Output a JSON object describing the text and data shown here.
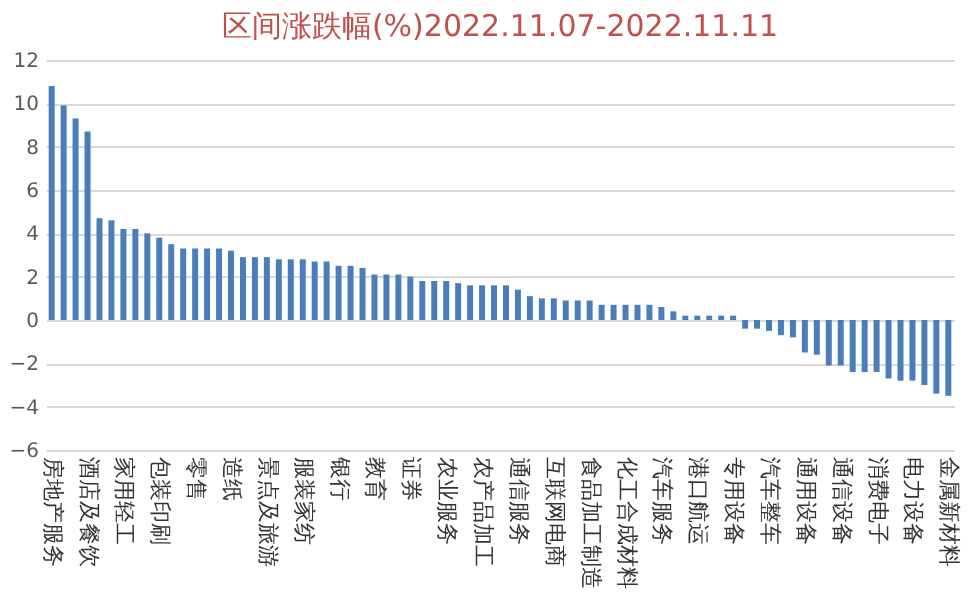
{
  "chart_data": {
    "type": "bar",
    "title": "区间涨跌幅(%)2022.11.07-2022.11.11",
    "categories": [
      "房地产服务",
      null,
      null,
      "酒店及餐饮",
      null,
      null,
      "家用轻工",
      null,
      null,
      "包装印刷",
      null,
      null,
      "零售",
      null,
      null,
      "造纸",
      null,
      null,
      "景点及旅游",
      null,
      null,
      "服装家纺",
      null,
      null,
      "银行",
      null,
      null,
      "教育",
      null,
      null,
      "证券",
      null,
      null,
      "农业服务",
      null,
      null,
      "农产品加工",
      null,
      null,
      "通信服务",
      null,
      null,
      "互联网电商",
      null,
      null,
      "食品加工制造",
      null,
      null,
      "化工合成材料",
      null,
      null,
      "汽车服务",
      null,
      null,
      "港口航运",
      null,
      null,
      "专用设备",
      null,
      null,
      "汽车整车",
      null,
      null,
      "通用设备",
      null,
      null,
      "通信设备",
      null,
      null,
      "消费电子",
      null,
      null,
      "电力设备",
      null,
      null,
      "金属新材料"
    ],
    "values": [
      10.8,
      9.9,
      9.3,
      8.7,
      4.7,
      4.6,
      4.2,
      4.2,
      4.0,
      3.8,
      3.5,
      3.3,
      3.3,
      3.3,
      3.3,
      3.2,
      2.9,
      2.9,
      2.9,
      2.8,
      2.8,
      2.8,
      2.7,
      2.7,
      2.5,
      2.5,
      2.4,
      2.1,
      2.1,
      2.1,
      2.0,
      1.8,
      1.8,
      1.8,
      1.7,
      1.6,
      1.6,
      1.6,
      1.6,
      1.4,
      1.1,
      1.0,
      1.0,
      0.9,
      0.9,
      0.9,
      0.7,
      0.7,
      0.7,
      0.7,
      0.7,
      0.6,
      0.4,
      0.2,
      0.2,
      0.2,
      0.2,
      0.2,
      -0.4,
      -0.4,
      -0.5,
      -0.7,
      -0.8,
      -1.5,
      -1.6,
      -2.1,
      -2.1,
      -2.4,
      -2.4,
      -2.4,
      -2.7,
      -2.8,
      -2.8,
      -3.0,
      -3.4,
      -3.5
    ],
    "color": "#4a7ebb",
    "ylim": [
      -6,
      12
    ],
    "yticks": [
      -6,
      -4,
      -2,
      0,
      2,
      4,
      6,
      8,
      10,
      12
    ],
    "grid": "y"
  }
}
